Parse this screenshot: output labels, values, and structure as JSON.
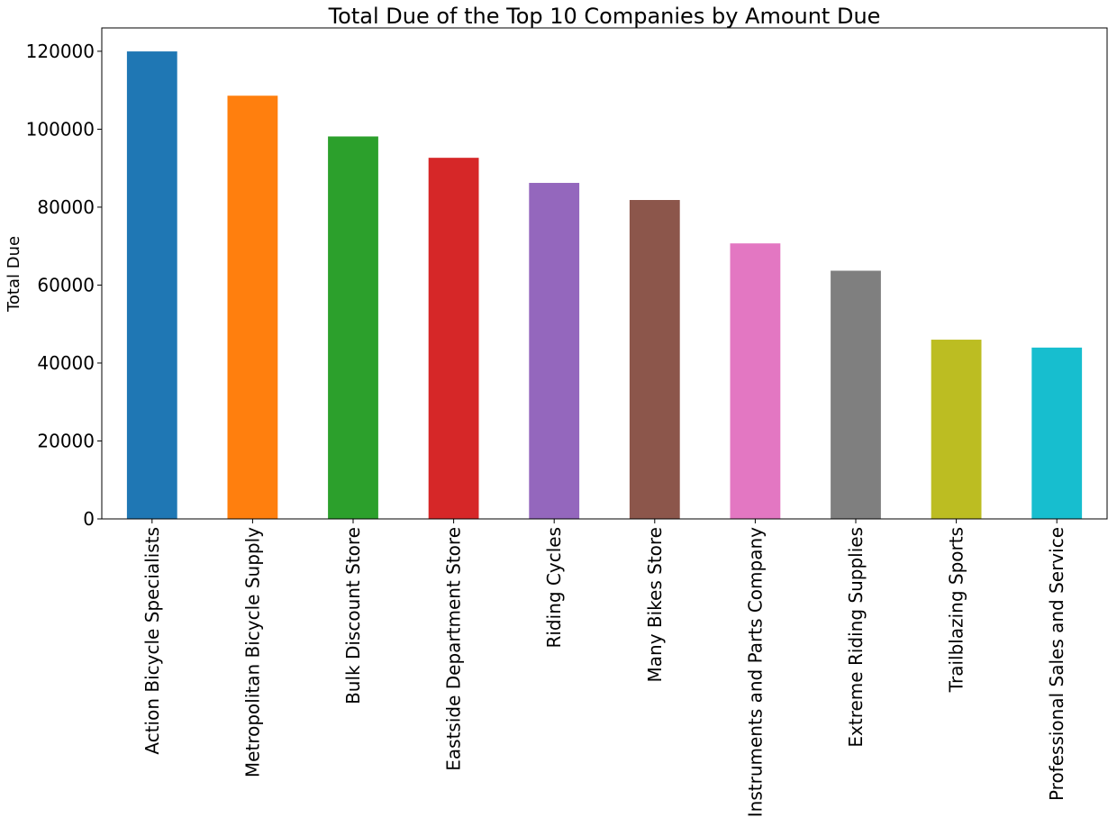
{
  "chart_data": {
    "type": "bar",
    "title": "Total Due of the Top 10 Companies by Amount Due",
    "xlabel": "",
    "ylabel": "Total Due",
    "categories": [
      "Action Bicycle Specialists",
      "Metropolitan Bicycle Supply",
      "Bulk Discount Store",
      "Eastside Department Store",
      "Riding Cycles",
      "Many Bikes Store",
      "Instruments and Parts Company",
      "Extreme Riding Supplies",
      "Trailblazing Sports",
      "Professional Sales and Service"
    ],
    "values": [
      119960,
      108598,
      98138,
      92663,
      86222,
      81834,
      70698,
      63686,
      45992,
      43962
    ],
    "colors": [
      "#1f77b4",
      "#ff7f0e",
      "#2ca02c",
      "#d62728",
      "#9467bd",
      "#8c564b",
      "#e377c2",
      "#7f7f7f",
      "#bcbd22",
      "#17becf"
    ],
    "ylim": [
      0,
      125988
    ],
    "yticks": [
      0,
      20000,
      40000,
      60000,
      80000,
      100000,
      120000
    ],
    "ytick_labels": [
      "0",
      "20000",
      "40000",
      "60000",
      "80000",
      "100000",
      "120000"
    ],
    "grid": false,
    "legend": "none"
  }
}
